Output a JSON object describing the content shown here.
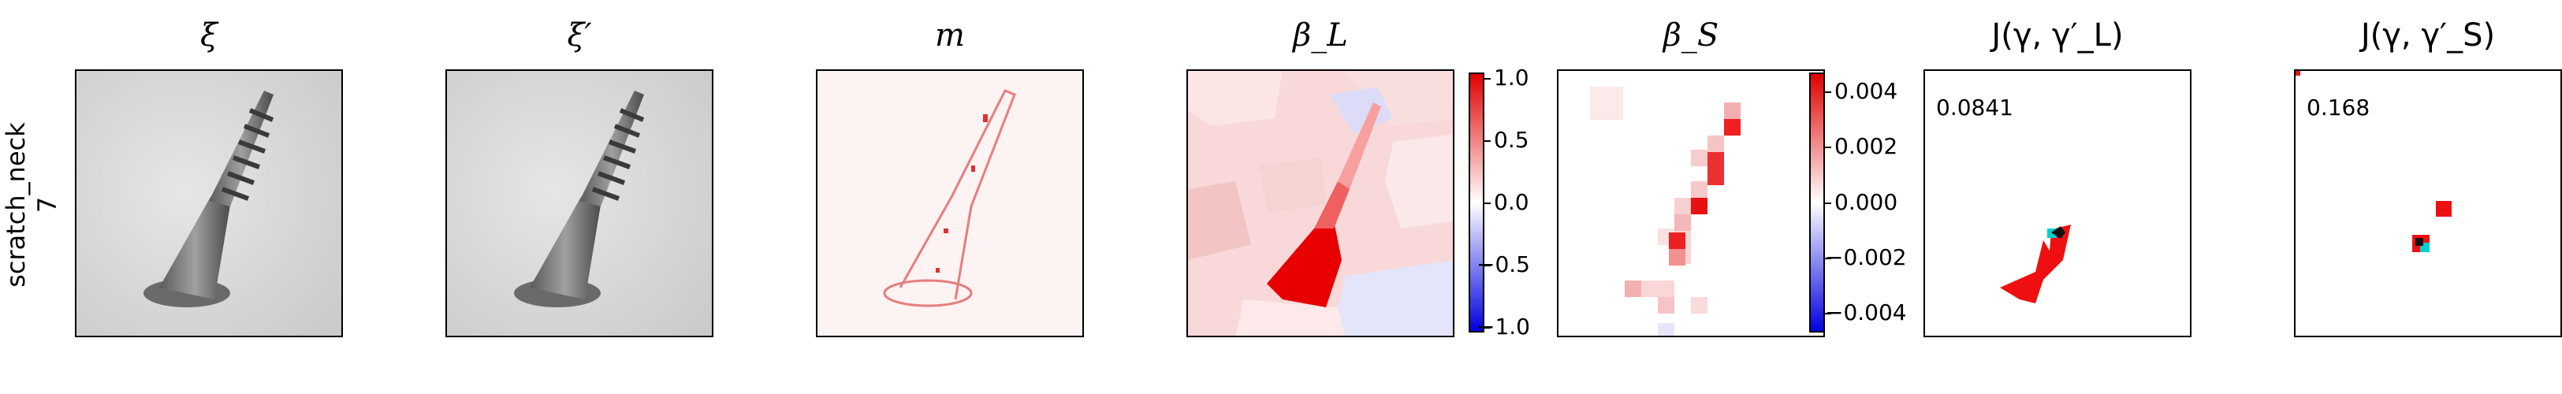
{
  "row_label": {
    "line1": "scratch_neck",
    "line2": "7"
  },
  "panels": [
    {
      "title": "ξ"
    },
    {
      "title": "ξ′"
    },
    {
      "title": "m"
    },
    {
      "title": "β_L"
    },
    {
      "title": "β_S"
    },
    {
      "title": "J(γ, γ′_L)",
      "score": "0.0841"
    },
    {
      "title": "J(γ, γ′_S)",
      "score": "0.168"
    }
  ],
  "colorbars": [
    {
      "ticks": [
        "1.0",
        "0.5",
        "0.0",
        "−0.5",
        "−1.0"
      ]
    },
    {
      "ticks": [
        "0.004",
        "0.002",
        "0.000",
        "−0.002",
        "−0.004"
      ]
    }
  ],
  "colors": {
    "positive": "#ff0000",
    "negative": "#0000ff",
    "neutral": "#ffffff",
    "marker": "#00d0d0"
  }
}
